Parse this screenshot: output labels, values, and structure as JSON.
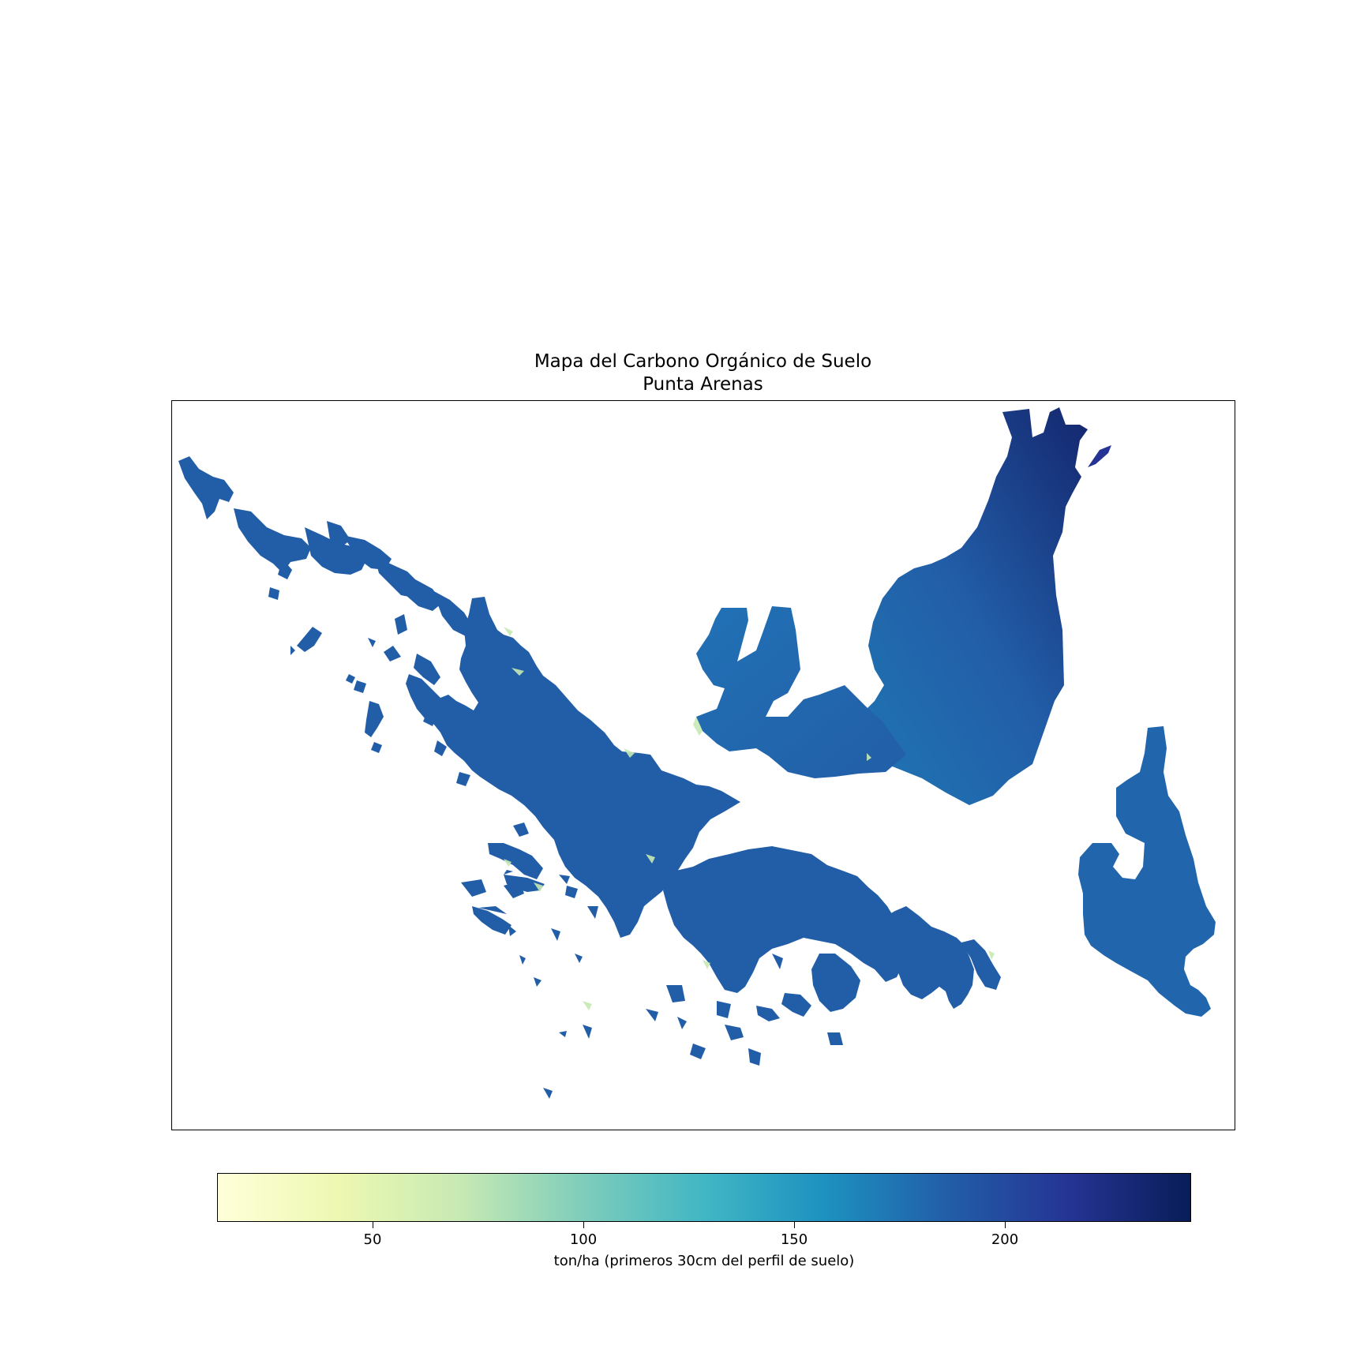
{
  "title": {
    "line1": "Mapa del Carbono Orgánico de Suelo",
    "line2": "Punta Arenas"
  },
  "colorbar": {
    "label": "ton/ha (primeros 30cm del perfil de suelo)",
    "colormap": "YlGnBu",
    "range": [
      13,
      244
    ],
    "ticks": [
      {
        "value": 50,
        "label": "50"
      },
      {
        "value": 100,
        "label": "100"
      },
      {
        "value": 150,
        "label": "150"
      },
      {
        "value": 200,
        "label": "200"
      }
    ],
    "stops": [
      "#ffffd9",
      "#edf8b1",
      "#c7e9b4",
      "#7fcdbb",
      "#41b6c4",
      "#1d91c0",
      "#225ea8",
      "#253494",
      "#081d58"
    ]
  },
  "map": {
    "regions": [
      {
        "name": "northwest-archipelago",
        "dominant_color": "#225ea8"
      },
      {
        "name": "central-archipelago",
        "dominant_color": "#225ea8"
      },
      {
        "name": "brunswick-peninsula",
        "dominant_color": "#1d6fb0"
      },
      {
        "name": "northeast-mainland",
        "dominant_color": "#253494"
      },
      {
        "name": "southern-islands",
        "dominant_color": "#225ea8"
      },
      {
        "name": "eastern-island",
        "dominant_color": "#2166ac"
      }
    ]
  }
}
